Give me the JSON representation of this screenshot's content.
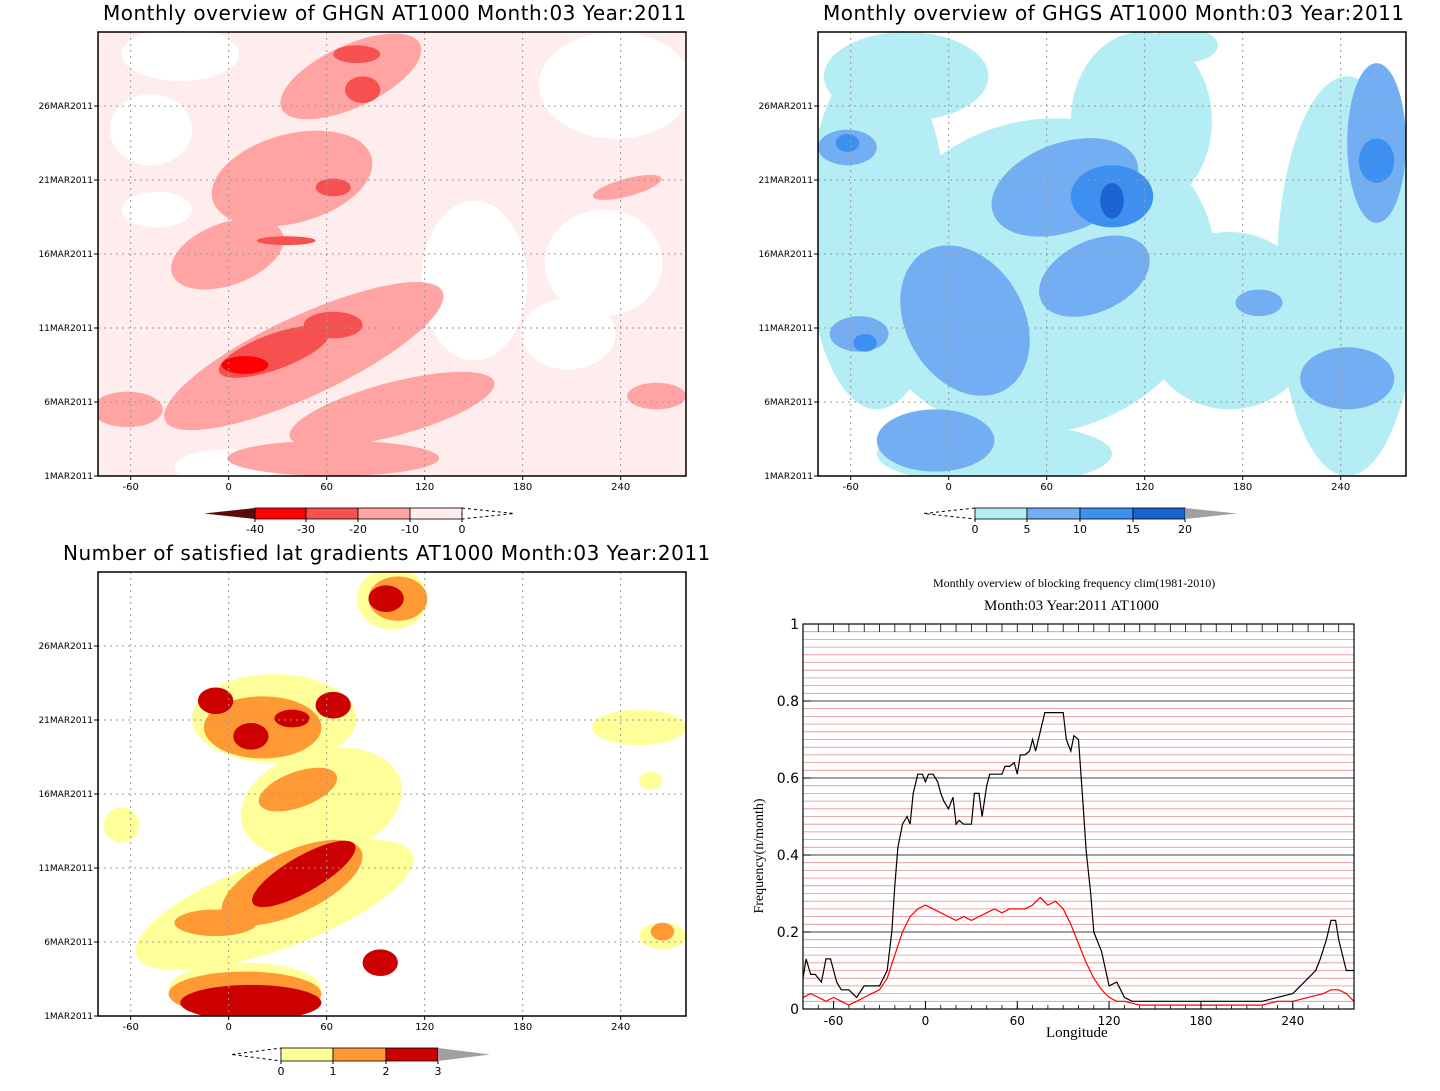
{
  "panels": {
    "ghgn": {
      "title": "Monthly overview of GHGN AT1000 Month:03 Year:2011",
      "y_ticks": [
        "1MAR2011",
        "6MAR2011",
        "11MAR2011",
        "16MAR2011",
        "21MAR2011",
        "26MAR2011"
      ],
      "x_ticks": [
        "-60",
        "0",
        "60",
        "120",
        "180",
        "240"
      ],
      "colorbar": {
        "labels": [
          "-40",
          "-30",
          "-20",
          "-10",
          "0"
        ],
        "colors": [
          "#5a0a0a",
          "#ff0000",
          "#f75050",
          "#ffa3a3",
          "#ffeded"
        ]
      }
    },
    "ghgs": {
      "title": "Monthly overview of GHGS AT1000 Month:03 Year:2011",
      "y_ticks": [
        "1MAR2011",
        "6MAR2011",
        "11MAR2011",
        "16MAR2011",
        "21MAR2011",
        "26MAR2011"
      ],
      "x_ticks": [
        "-60",
        "0",
        "60",
        "120",
        "180",
        "240"
      ],
      "colorbar": {
        "labels": [
          "0",
          "5",
          "10",
          "15",
          "20"
        ],
        "colors": [
          "#b4eef4",
          "#73aef3",
          "#3d8ff0",
          "#1c63d2",
          "#a0a0a0"
        ]
      }
    },
    "lat": {
      "title": "Number of satisfied lat gradients AT1000 Month:03 Year:2011",
      "y_ticks": [
        "1MAR2011",
        "6MAR2011",
        "11MAR2011",
        "16MAR2011",
        "21MAR2011",
        "26MAR2011"
      ],
      "x_ticks": [
        "-60",
        "0",
        "60",
        "120",
        "180",
        "240"
      ],
      "colorbar": {
        "labels": [
          "0",
          "1",
          "2",
          "3"
        ],
        "colors": [
          "#ffff99",
          "#ff9933",
          "#cc0000",
          "#a0a0a0"
        ]
      }
    },
    "freq": {
      "title_line1": "Monthly overview of blocking frequency clim(1981-2010)",
      "title_line2": "Month:03 Year:2011  AT1000",
      "xlabel": "Longitude",
      "ylabel": "Frequency(n/month)",
      "x_ticks": [
        "-60",
        "0",
        "60",
        "120",
        "180",
        "240"
      ],
      "y_ticks": [
        "0",
        "0.2",
        "0.4",
        "0.6",
        "0.8",
        "1"
      ]
    }
  },
  "chart_data": [
    {
      "type": "heatmap",
      "title": "Monthly overview of GHGN AT1000 Month:03 Year:2011",
      "xlim": [
        -90,
        270
      ],
      "ylim": [
        "1MAR2011",
        "31MAR2011"
      ],
      "xticks": [
        -60,
        0,
        60,
        120,
        180,
        240
      ],
      "yticks": [
        "1MAR2011",
        "6MAR2011",
        "11MAR2011",
        "16MAR2011",
        "21MAR2011",
        "26MAR2011"
      ],
      "levels": [
        -40,
        -30,
        -20,
        -10,
        0
      ],
      "grid": true
    },
    {
      "type": "heatmap",
      "title": "Monthly overview of GHGS AT1000 Month:03 Year:2011",
      "xlim": [
        -90,
        270
      ],
      "ylim": [
        "1MAR2011",
        "31MAR2011"
      ],
      "xticks": [
        -60,
        0,
        60,
        120,
        180,
        240
      ],
      "yticks": [
        "1MAR2011",
        "6MAR2011",
        "11MAR2011",
        "16MAR2011",
        "21MAR2011",
        "26MAR2011"
      ],
      "levels": [
        0,
        5,
        10,
        15,
        20
      ],
      "grid": true
    },
    {
      "type": "heatmap",
      "title": "Number of satisfied lat gradients AT1000 Month:03 Year:2011",
      "xlim": [
        -90,
        270
      ],
      "ylim": [
        "1MAR2011",
        "31MAR2011"
      ],
      "xticks": [
        -60,
        0,
        60,
        120,
        180,
        240
      ],
      "yticks": [
        "1MAR2011",
        "6MAR2011",
        "11MAR2011",
        "16MAR2011",
        "21MAR2011",
        "26MAR2011"
      ],
      "levels": [
        0,
        1,
        2,
        3
      ],
      "grid": true
    },
    {
      "type": "line",
      "title": "Monthly overview of blocking frequency clim(1981-2010) / Month:03 Year:2011  AT1000",
      "xlabel": "Longitude",
      "ylabel": "Frequency(n/month)",
      "xlim": [
        -80,
        280
      ],
      "ylim": [
        0,
        1
      ],
      "grid": true,
      "series": [
        {
          "color": "#000000",
          "x": [
            -80,
            -78,
            -75,
            -72,
            -68,
            -65,
            -62,
            -58,
            -55,
            -50,
            -45,
            -40,
            -35,
            -30,
            -25,
            -22,
            -20,
            -18,
            -15,
            -12,
            -10,
            -8,
            -5,
            -2,
            0,
            2,
            5,
            8,
            10,
            12,
            15,
            18,
            20,
            22,
            25,
            28,
            30,
            32,
            35,
            37,
            40,
            42,
            45,
            48,
            50,
            52,
            55,
            58,
            60,
            62,
            65,
            68,
            70,
            72,
            75,
            78,
            80,
            85,
            90,
            92,
            95,
            97,
            100,
            103,
            105,
            108,
            110,
            115,
            120,
            125,
            130,
            135,
            140,
            150,
            160,
            170,
            180,
            190,
            200,
            210,
            220,
            230,
            240,
            245,
            250,
            255,
            258,
            262,
            265,
            268,
            270,
            275,
            280
          ],
          "values": [
            0.08,
            0.13,
            0.09,
            0.09,
            0.07,
            0.13,
            0.13,
            0.07,
            0.05,
            0.05,
            0.03,
            0.06,
            0.06,
            0.06,
            0.1,
            0.2,
            0.32,
            0.42,
            0.48,
            0.5,
            0.48,
            0.56,
            0.61,
            0.61,
            0.59,
            0.61,
            0.61,
            0.59,
            0.56,
            0.54,
            0.52,
            0.55,
            0.48,
            0.49,
            0.48,
            0.48,
            0.48,
            0.56,
            0.56,
            0.5,
            0.58,
            0.61,
            0.61,
            0.61,
            0.61,
            0.63,
            0.63,
            0.64,
            0.61,
            0.66,
            0.66,
            0.67,
            0.7,
            0.67,
            0.72,
            0.77,
            0.77,
            0.77,
            0.77,
            0.7,
            0.67,
            0.71,
            0.7,
            0.53,
            0.41,
            0.3,
            0.2,
            0.15,
            0.06,
            0.07,
            0.03,
            0.02,
            0.02,
            0.02,
            0.02,
            0.02,
            0.02,
            0.02,
            0.02,
            0.02,
            0.02,
            0.03,
            0.04,
            0.06,
            0.08,
            0.1,
            0.13,
            0.18,
            0.23,
            0.23,
            0.18,
            0.1,
            0.1
          ]
        },
        {
          "color": "#ff0000",
          "x": [
            -80,
            -75,
            -70,
            -65,
            -60,
            -55,
            -50,
            -45,
            -40,
            -35,
            -30,
            -25,
            -20,
            -15,
            -10,
            -5,
            0,
            5,
            10,
            15,
            20,
            25,
            30,
            35,
            40,
            45,
            50,
            55,
            60,
            65,
            70,
            75,
            80,
            85,
            90,
            95,
            100,
            105,
            110,
            115,
            120,
            125,
            130,
            140,
            150,
            160,
            170,
            180,
            190,
            200,
            210,
            220,
            230,
            240,
            250,
            260,
            265,
            270,
            275,
            280
          ],
          "values": [
            0.03,
            0.04,
            0.03,
            0.02,
            0.03,
            0.02,
            0.01,
            0.02,
            0.03,
            0.04,
            0.05,
            0.08,
            0.14,
            0.2,
            0.24,
            0.26,
            0.27,
            0.26,
            0.25,
            0.24,
            0.23,
            0.24,
            0.23,
            0.24,
            0.25,
            0.26,
            0.25,
            0.26,
            0.26,
            0.26,
            0.27,
            0.29,
            0.27,
            0.28,
            0.26,
            0.22,
            0.17,
            0.12,
            0.08,
            0.05,
            0.03,
            0.02,
            0.02,
            0.01,
            0.01,
            0.01,
            0.01,
            0.01,
            0.01,
            0.01,
            0.01,
            0.01,
            0.02,
            0.02,
            0.03,
            0.04,
            0.05,
            0.05,
            0.04,
            0.02
          ]
        }
      ]
    }
  ]
}
